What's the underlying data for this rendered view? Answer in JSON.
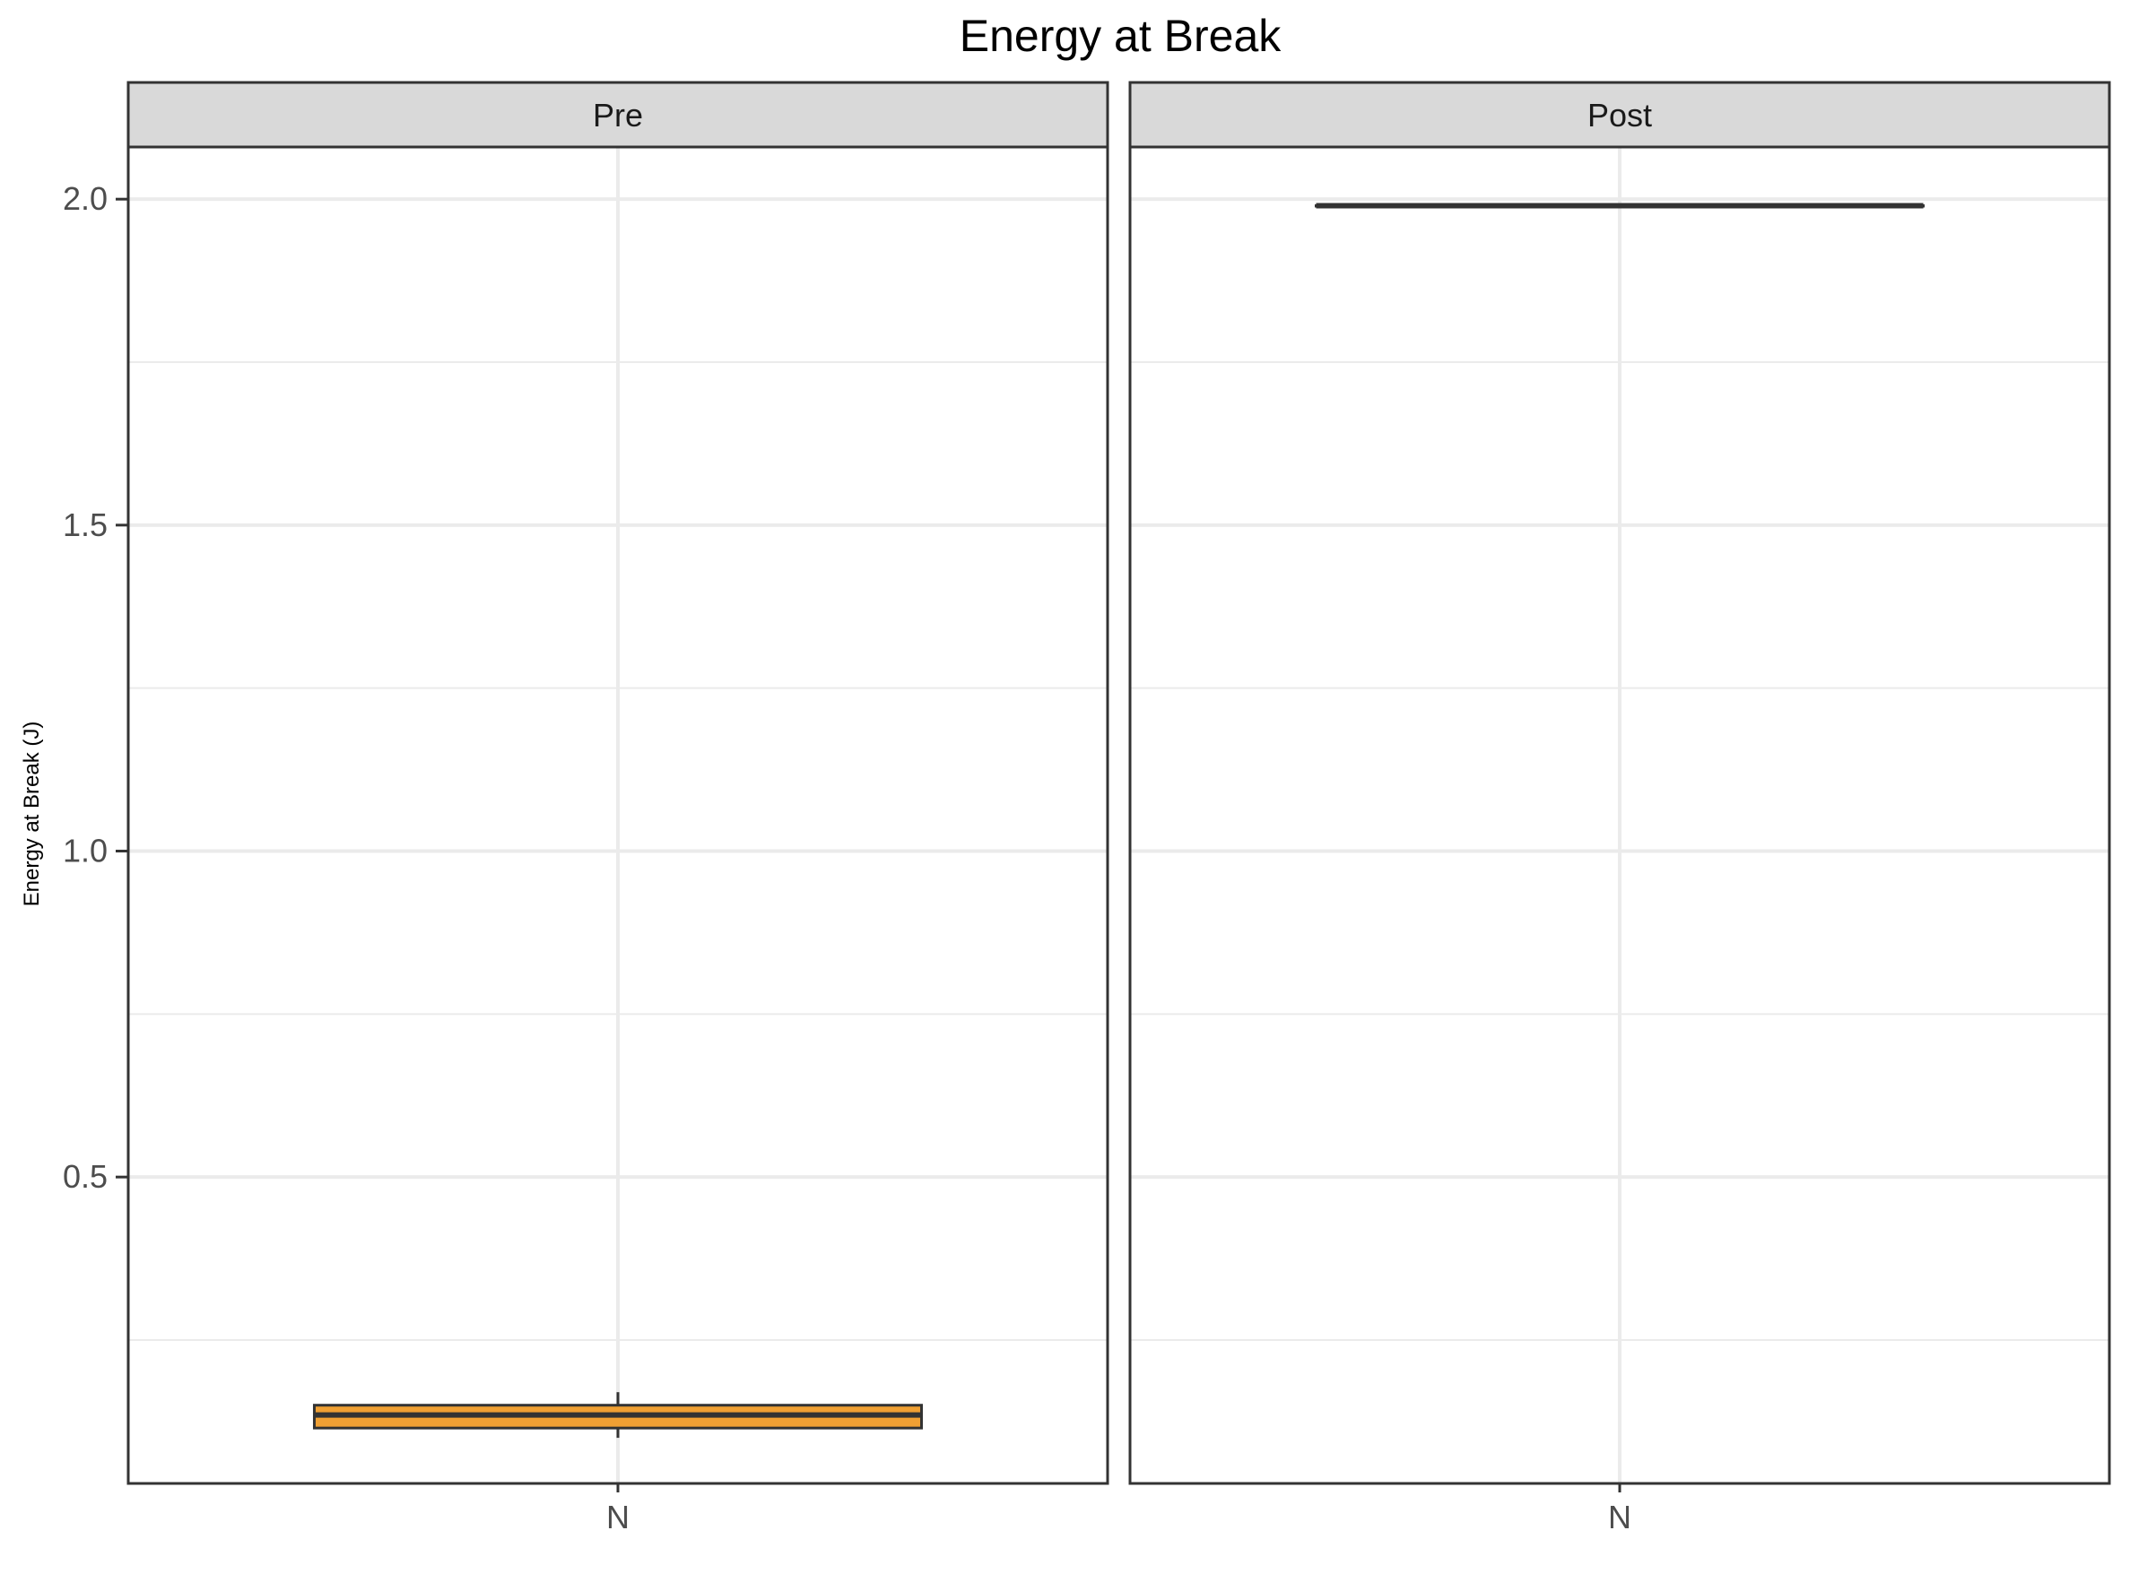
{
  "chart_data": {
    "type": "boxplot",
    "title": "Energy at Break",
    "xlabel": "",
    "ylabel": "Energy at Break (J)",
    "ylim": [
      0.03,
      2.08
    ],
    "yticks": [
      0.5,
      1.0,
      1.5,
      2.0
    ],
    "ytick_labels": [
      "0.5",
      "1.0",
      "1.5",
      "2.0"
    ],
    "minor_gridlines": [
      0.25,
      0.75,
      1.25,
      1.75
    ],
    "grid": true,
    "legend": "none",
    "facets": [
      {
        "label": "Pre",
        "categories": [
          "N"
        ],
        "boxes": [
          {
            "category": "N",
            "min": 0.1,
            "q1": 0.115,
            "median": 0.135,
            "q3": 0.15,
            "max": 0.17,
            "fill": "#f0a033"
          }
        ]
      },
      {
        "label": "Post",
        "categories": [
          "N"
        ],
        "boxes": [
          {
            "category": "N",
            "min": 1.99,
            "q1": 1.99,
            "median": 1.99,
            "q3": 1.99,
            "max": 1.99,
            "fill": "#f0a033"
          }
        ]
      }
    ]
  }
}
